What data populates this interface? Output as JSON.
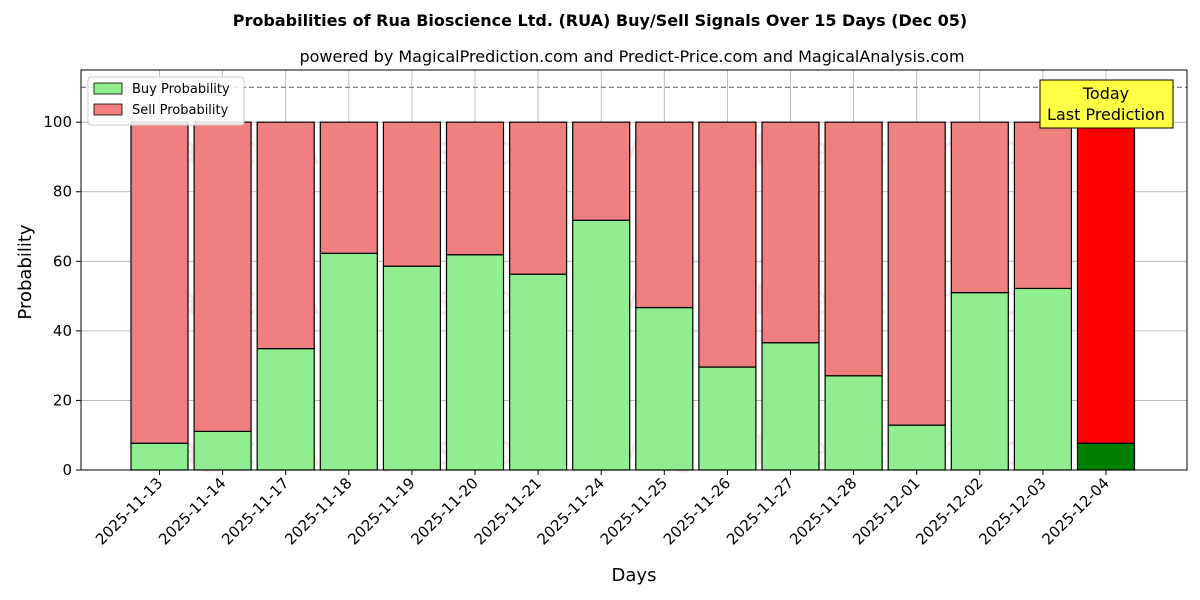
{
  "chart_data": {
    "type": "bar",
    "stacked": true,
    "title": "Probabilities of Rua Bioscience Ltd. (RUA) Buy/Sell Signals Over 15 Days (Dec 05)",
    "subtitle": "powered by MagicalPrediction.com and Predict-Price.com and MagicalAnalysis.com",
    "xlabel": "Days",
    "ylabel": "Probability",
    "ylim": [
      0,
      115
    ],
    "yticks": [
      0,
      20,
      40,
      60,
      80,
      100
    ],
    "reference_line": 110,
    "grid": true,
    "legend_position": "top-left",
    "categories": [
      "2025-11-13",
      "2025-11-14",
      "2025-11-17",
      "2025-11-18",
      "2025-11-19",
      "2025-11-20",
      "2025-11-21",
      "2025-11-24",
      "2025-11-25",
      "2025-11-26",
      "2025-11-27",
      "2025-11-28",
      "2025-12-01",
      "2025-12-02",
      "2025-12-03",
      "2025-12-04"
    ],
    "series": [
      {
        "name": "Buy Probability",
        "color": "#90ee90",
        "values": [
          7.7,
          11.1,
          34.9,
          62.3,
          58.6,
          61.9,
          56.3,
          71.8,
          46.7,
          29.6,
          36.6,
          27.1,
          12.9,
          51.0,
          52.2,
          7.7
        ]
      },
      {
        "name": "Sell Probability",
        "color": "#f08080",
        "values": [
          92.3,
          88.9,
          65.1,
          37.7,
          41.4,
          38.1,
          43.7,
          28.2,
          53.3,
          70.4,
          63.4,
          72.9,
          87.1,
          49.0,
          47.8,
          92.3
        ]
      }
    ],
    "highlight": {
      "index": 15,
      "buy_color": "#008000",
      "sell_color": "#ff0000"
    },
    "annotation": {
      "line1": "Today",
      "line2": "Last Prediction",
      "color": "#ffff44"
    },
    "watermarks": [
      "MagicalAnalysis.com",
      "MagicalPrediction.com"
    ]
  }
}
